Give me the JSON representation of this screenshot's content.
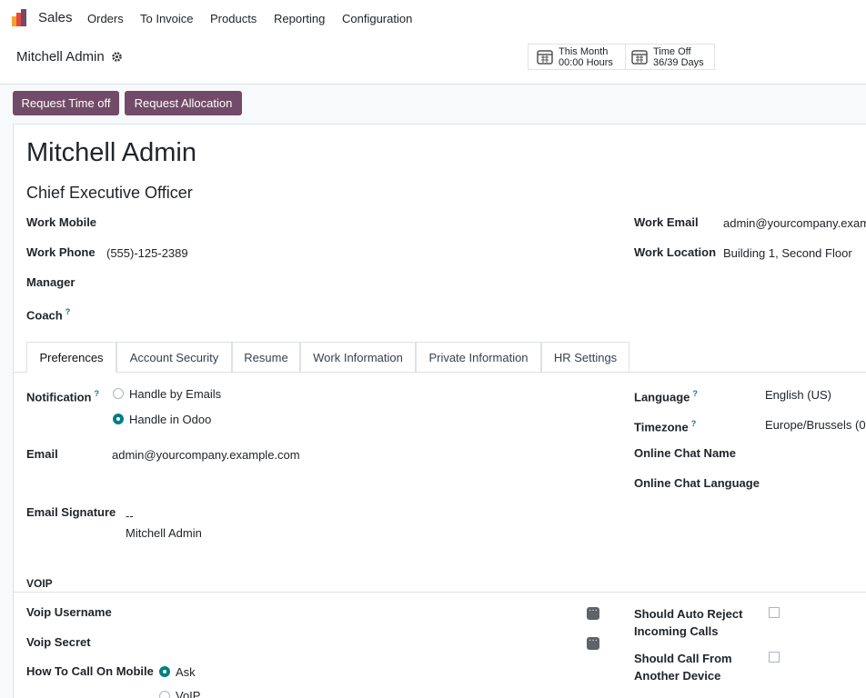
{
  "navbar": {
    "app": "Sales",
    "menu": [
      "Orders",
      "To Invoice",
      "Products",
      "Reporting",
      "Configuration"
    ]
  },
  "breadcrumb": "Mitchell Admin",
  "stat_buttons": [
    {
      "label": "This Month",
      "value": "00:00 Hours"
    },
    {
      "label": "Time Off",
      "value": "36/39 Days"
    }
  ],
  "actions": [
    "Request Time off",
    "Request Allocation"
  ],
  "employee": {
    "name": "Mitchell Admin",
    "job_title": "Chief Executive Officer",
    "left_fields": [
      {
        "label": "Work Mobile"
      },
      {
        "label": "Work Phone",
        "value": "(555)-125-2389"
      },
      {
        "label": "Manager"
      },
      {
        "label": "Coach",
        "help": "?"
      }
    ],
    "right_fields": [
      {
        "label": "Work Email",
        "value": "admin@yourcompany.exam"
      },
      {
        "label": "Work Location",
        "value": "Building 1, Second Floor"
      }
    ]
  },
  "tabs": [
    "Preferences",
    "Account Security",
    "Resume",
    "Work Information",
    "Private Information",
    "HR Settings"
  ],
  "preferences": {
    "notification": {
      "label": "Notification",
      "help": "?",
      "options": [
        "Handle by Emails",
        "Handle in Odoo"
      ]
    },
    "email": {
      "label": "Email",
      "value": "admin@yourcompany.example.com"
    },
    "signature": {
      "label": "Email Signature",
      "lines": [
        "--",
        "Mitchell Admin"
      ]
    },
    "language": {
      "label": "Language",
      "help": "?",
      "value": "English (US)"
    },
    "timezone": {
      "label": "Timezone",
      "help": "?",
      "value": "Europe/Brussels (0"
    },
    "chat_name": {
      "label": "Online Chat Name"
    },
    "chat_language": {
      "label": "Online Chat Language"
    }
  },
  "voip": {
    "heading": "VOIP",
    "username": {
      "label": "Voip Username"
    },
    "secret": {
      "label": "Voip Secret"
    },
    "call_mobile": {
      "label": "How To Call On Mobile",
      "options": [
        "Ask",
        "VoIP"
      ]
    },
    "auto_reject": {
      "label": "Should Auto Reject Incoming Calls"
    },
    "call_other": {
      "label": "Should Call From Another Device"
    }
  }
}
